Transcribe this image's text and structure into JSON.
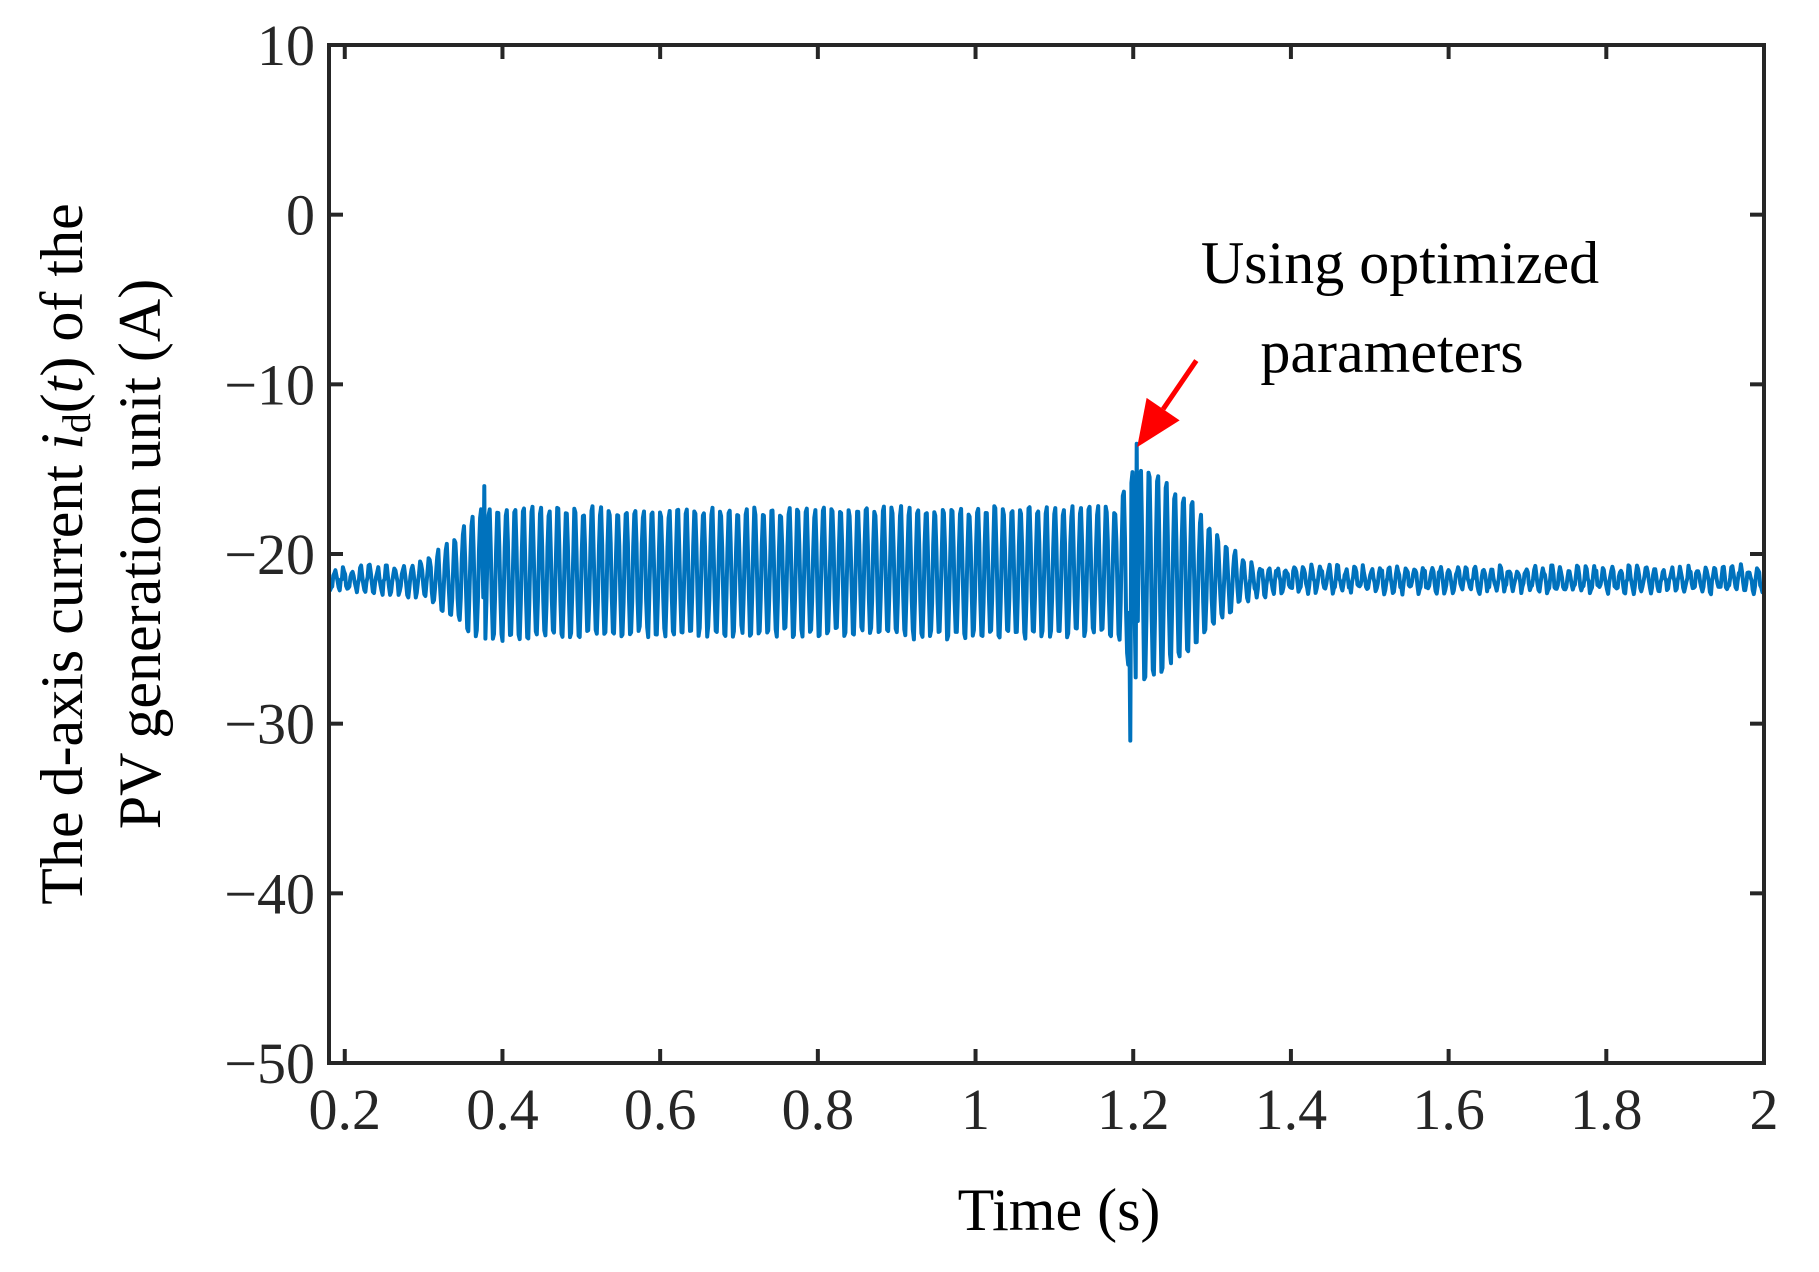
{
  "chart_data": {
    "type": "line",
    "title": "",
    "xlabel": "Time (s)",
    "ylabel": {
      "line1_prefix": "The d-axis current ",
      "line1_var": "i",
      "line1_sub": "d",
      "line1_paren_open": "(",
      "line1_t": "t",
      "line1_suffix": ") of the",
      "line2": "PV generation unit (A)"
    },
    "xlim": [
      0.18,
      2.0
    ],
    "ylim": [
      -50,
      10
    ],
    "xticks": [
      0.2,
      0.4,
      0.6,
      0.8,
      1.0,
      1.2,
      1.4,
      1.6,
      1.8,
      2.0
    ],
    "xtick_labels": [
      "0.2",
      "0.4",
      "0.6",
      "0.8",
      "1",
      "1.2",
      "1.4",
      "1.6",
      "1.8",
      "2"
    ],
    "yticks": [
      10,
      0,
      -10,
      -20,
      -30,
      -40,
      -50
    ],
    "ytick_labels": [
      "10",
      "0",
      "−10",
      "−20",
      "−30",
      "−40",
      "−50"
    ],
    "grid": false,
    "series": [
      {
        "name": "i_d(t)",
        "color": "#0072BD",
        "baseline": -21.5,
        "oscillation_freq_hz": 92,
        "segments": [
          {
            "t": 0.18,
            "upper": -21.0,
            "lower": -22.0
          },
          {
            "t": 0.3,
            "upper": -20.5,
            "lower": -22.5
          },
          {
            "t": 0.34,
            "upper": -19.0,
            "lower": -24.0
          },
          {
            "t": 0.37,
            "upper": -17.2,
            "lower": -25.2
          },
          {
            "t": 0.4,
            "upper": -17.0,
            "lower": -25.3
          },
          {
            "t": 0.6,
            "upper": -17.2,
            "lower": -25.0
          },
          {
            "t": 0.8,
            "upper": -17.1,
            "lower": -25.0
          },
          {
            "t": 1.0,
            "upper": -17.0,
            "lower": -25.2
          },
          {
            "t": 1.18,
            "upper": -17.0,
            "lower": -25.0
          },
          {
            "t": 1.2,
            "upper": -14.5,
            "lower": -28.0
          },
          {
            "t": 1.23,
            "upper": -15.0,
            "lower": -27.5
          },
          {
            "t": 1.27,
            "upper": -16.5,
            "lower": -26.0
          },
          {
            "t": 1.31,
            "upper": -19.0,
            "lower": -24.0
          },
          {
            "t": 1.35,
            "upper": -20.6,
            "lower": -22.5
          },
          {
            "t": 1.4,
            "upper": -20.8,
            "lower": -22.2
          },
          {
            "t": 2.0,
            "upper": -20.8,
            "lower": -22.2
          }
        ],
        "extremes": [
          {
            "t": 0.377,
            "value": -16.0
          },
          {
            "t": 1.196,
            "value": -31.0
          },
          {
            "t": 1.204,
            "value": -13.5
          }
        ]
      }
    ],
    "annotation": {
      "line1": "Using optimized",
      "line2": "parameters",
      "arrow_color": "#FF0000",
      "arrow_target": {
        "x": 1.205,
        "y": -13.7
      },
      "arrow_tail": {
        "x": 1.28,
        "y": -8.6
      }
    }
  }
}
